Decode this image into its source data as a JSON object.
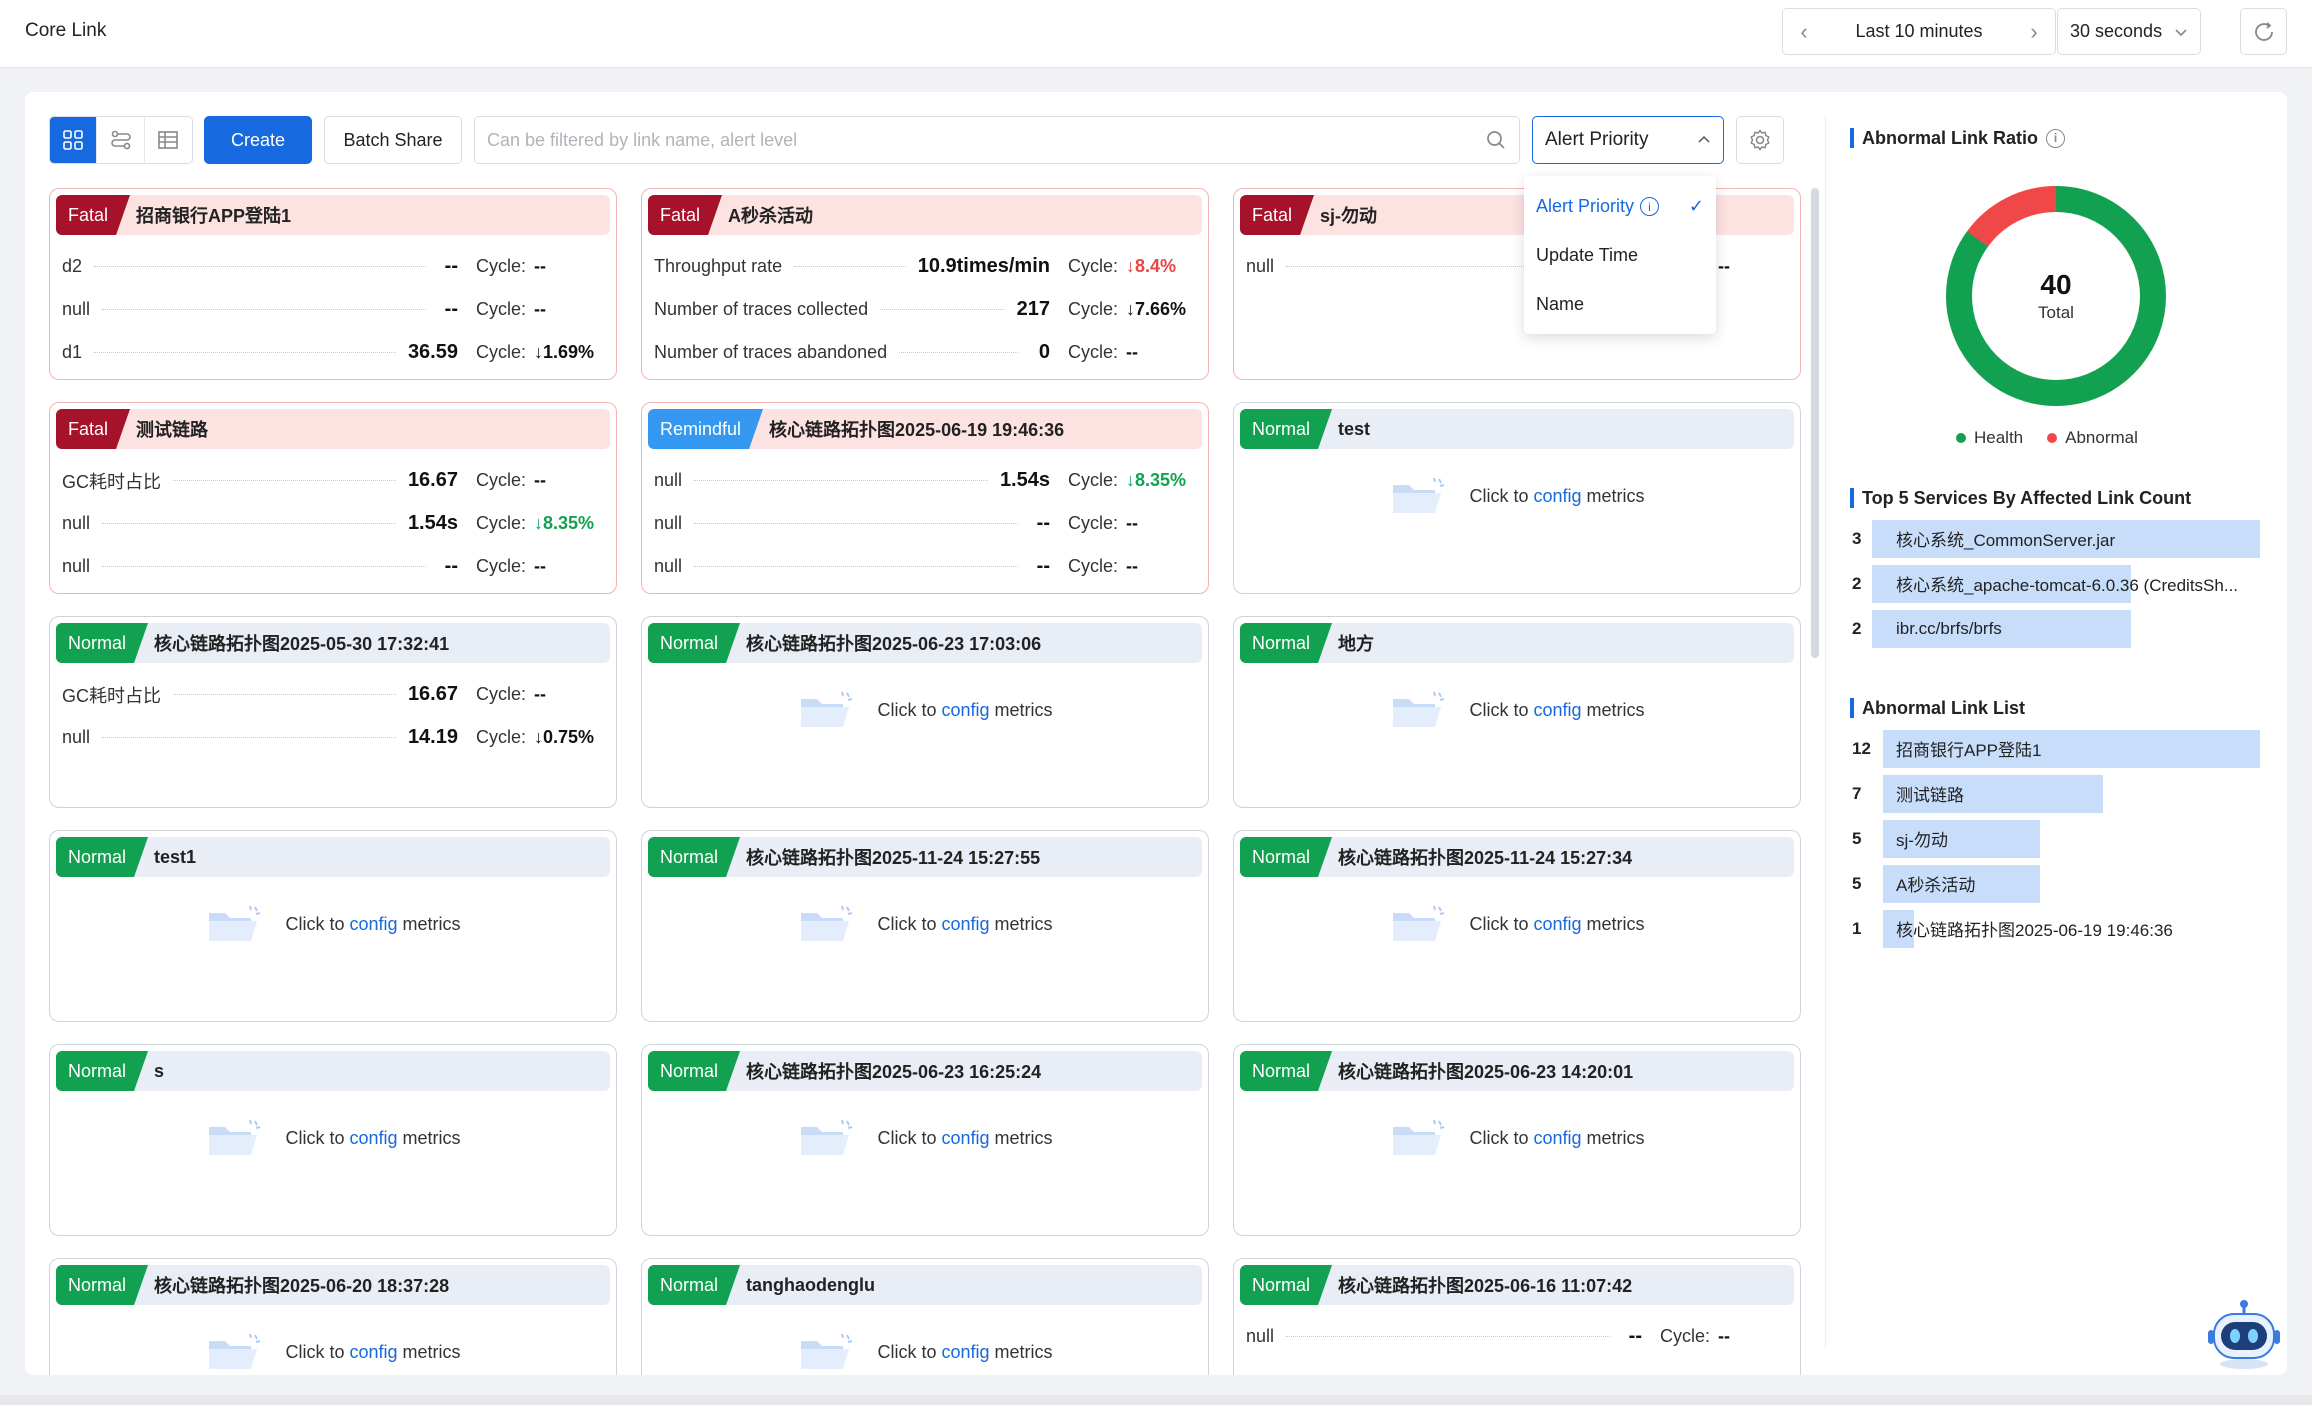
{
  "app": {
    "title": "Core Link"
  },
  "header": {
    "time_range": "Last 10 minutes",
    "interval": "30 seconds",
    "prev_arrow": "‹",
    "next_arrow": "›"
  },
  "toolbar": {
    "create_label": "Create",
    "batch_share_label": "Batch Share",
    "search_placeholder": "Can be filtered by link name, alert level",
    "sort_selected": "Alert Priority"
  },
  "sort_dropdown": {
    "options": [
      "Alert Priority",
      "Update Time",
      "Name"
    ],
    "selected": 0
  },
  "empty_text": {
    "prefix": "Click to",
    "link": "config",
    "suffix": "metrics"
  },
  "cycle_label": "Cycle:",
  "cards": [
    {
      "level": "Fatal",
      "title": "招商银行APP登陆1",
      "metrics": [
        {
          "name": "d2",
          "value": "--",
          "cycle": "--"
        },
        {
          "name": "null",
          "value": "--",
          "cycle": "--"
        },
        {
          "name": "d1",
          "value": "36.59",
          "cycle": "1.69%",
          "trend": "down"
        }
      ]
    },
    {
      "level": "Fatal",
      "title": "A秒杀活动",
      "metrics": [
        {
          "name": "Throughput rate",
          "value": "10.9times/min",
          "cycle": "8.4%",
          "trend": "up"
        },
        {
          "name": "Number of traces collected",
          "value": "217",
          "cycle": "7.66%",
          "trend": "down"
        },
        {
          "name": "Number of traces abandoned",
          "value": "0",
          "cycle": "--"
        }
      ]
    },
    {
      "level": "Fatal",
      "title": "sj-勿动",
      "metrics": [
        {
          "name": "null",
          "value": "--",
          "cycle": "--"
        }
      ]
    },
    {
      "level": "Fatal",
      "title": "测试链路",
      "metrics": [
        {
          "name": "GC耗时占比",
          "value": "16.67",
          "cycle": "--"
        },
        {
          "name": "null",
          "value": "1.54s",
          "cycle": "8.35%",
          "trend": "down-green"
        },
        {
          "name": "null",
          "value": "--",
          "cycle": "--"
        }
      ]
    },
    {
      "level": "Remindful",
      "title": "核心链路拓扑图2025-06-19 19:46:36",
      "metrics": [
        {
          "name": "null",
          "value": "1.54s",
          "cycle": "8.35%",
          "trend": "down-green"
        },
        {
          "name": "null",
          "value": "--",
          "cycle": "--"
        },
        {
          "name": "null",
          "value": "--",
          "cycle": "--"
        }
      ]
    },
    {
      "level": "Normal",
      "title": "test",
      "metrics": []
    },
    {
      "level": "Normal",
      "title": "核心链路拓扑图2025-05-30 17:32:41",
      "metrics": [
        {
          "name": "GC耗时占比",
          "value": "16.67",
          "cycle": "--"
        },
        {
          "name": "null",
          "value": "14.19",
          "cycle": "0.75%",
          "trend": "down"
        }
      ]
    },
    {
      "level": "Normal",
      "title": "核心链路拓扑图2025-06-23 17:03:06",
      "metrics": []
    },
    {
      "level": "Normal",
      "title": "地方",
      "metrics": []
    },
    {
      "level": "Normal",
      "title": "test1",
      "metrics": []
    },
    {
      "level": "Normal",
      "title": "核心链路拓扑图2025-11-24 15:27:55",
      "metrics": []
    },
    {
      "level": "Normal",
      "title": "核心链路拓扑图2025-11-24 15:27:34",
      "metrics": []
    },
    {
      "level": "Normal",
      "title": "s",
      "metrics": []
    },
    {
      "level": "Normal",
      "title": "核心链路拓扑图2025-06-23 16:25:24",
      "metrics": []
    },
    {
      "level": "Normal",
      "title": "核心链路拓扑图2025-06-23 14:20:01",
      "metrics": []
    },
    {
      "level": "Normal",
      "title": "核心链路拓扑图2025-06-20 18:37:28",
      "metrics": []
    },
    {
      "level": "Normal",
      "title": "tanghaodenglu",
      "metrics": []
    },
    {
      "level": "Normal",
      "title": "核心链路拓扑图2025-06-16 11:07:42",
      "metrics": [
        {
          "name": "null",
          "value": "--",
          "cycle": "--"
        }
      ]
    }
  ],
  "sidebar": {
    "ratio": {
      "title": "Abnormal Link Ratio",
      "total": "40",
      "total_label": "Total",
      "health_label": "Health",
      "abnormal_label": "Abnormal",
      "abnormal_fraction": 0.15,
      "health_color": "#12a150",
      "abnormal_color": "#f04848"
    },
    "top_services": {
      "title": "Top 5 Services By Affected Link Count",
      "items": [
        {
          "count": "3",
          "name": "核心系统_CommonServer.jar",
          "value": 3
        },
        {
          "count": "2",
          "name": "核心系统_apache-tomcat-6.0.36 (CreditsSh...",
          "value": 2
        },
        {
          "count": "2",
          "name": "ibr.cc/brfs/brfs",
          "value": 2
        }
      ]
    },
    "abnormal_list": {
      "title": "Abnormal Link List",
      "items": [
        {
          "count": "12",
          "name": "招商银行APP登陆1",
          "value": 12
        },
        {
          "count": "7",
          "name": "测试链路",
          "value": 7
        },
        {
          "count": "5",
          "name": "sj-勿动",
          "value": 5
        },
        {
          "count": "5",
          "name": "A秒杀活动",
          "value": 5
        },
        {
          "count": "1",
          "name": "核心链路拓扑图2025-06-19 19:46:36",
          "value": 1
        }
      ]
    }
  }
}
